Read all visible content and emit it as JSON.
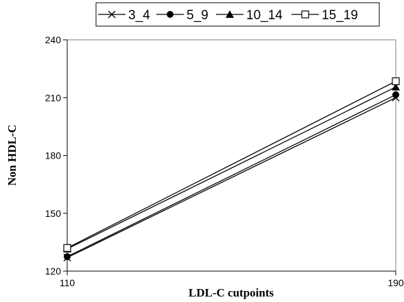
{
  "chart_data": {
    "type": "line",
    "xlabel": "LDL-C cutpoints",
    "ylabel": "Non HDL-C",
    "x": [
      110,
      190
    ],
    "xlim": [
      110,
      190
    ],
    "ylim": [
      120,
      240
    ],
    "yticks": [
      120,
      150,
      180,
      210,
      240
    ],
    "xticks": [
      110,
      190
    ],
    "grid": false,
    "legend_position": "top",
    "series": [
      {
        "name": "3_4",
        "marker": "x",
        "values": [
          127,
          210
        ]
      },
      {
        "name": "5_9",
        "marker": "circle",
        "values": [
          127.5,
          211.5
        ]
      },
      {
        "name": "10_14",
        "marker": "triangle",
        "values": [
          131.5,
          215.5
        ]
      },
      {
        "name": "15_19",
        "marker": "square-open",
        "values": [
          132,
          218.5
        ]
      }
    ]
  }
}
